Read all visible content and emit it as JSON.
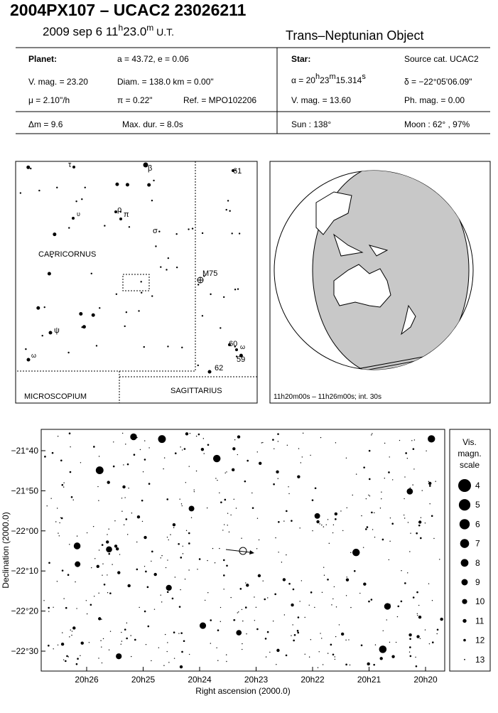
{
  "header": {
    "title": "2004PX107  –  UCAC2 23026211",
    "date": [
      "2009 sep  6  11",
      "h",
      "23.0",
      "m",
      " U.T."
    ],
    "object_class": "Trans–Neptunian Object"
  },
  "planet": {
    "heading": "Planet:",
    "orbit": "a = 43.72, e = 0.06",
    "vmag": "V. mag. = 23.20",
    "diam": "Diam. = 138.0 km = 0.00\"",
    "motion": "μ = 2.10\"/h",
    "parallax": "π = 0.22\"",
    "ref": "Ref. = MPO102206"
  },
  "star": {
    "heading": "Star:",
    "source": "Source cat.  UCAC2",
    "ra": [
      "α = 20",
      "h",
      "23",
      "m",
      "15.314",
      "s"
    ],
    "dec": "δ = −22°05'06.09\"",
    "vmag": "V. mag. = 13.60",
    "phmag": "Ph. mag. =  0.00"
  },
  "event": {
    "dmag": "Δm = 9.6",
    "maxdur": "Max. dur. = 8.0s",
    "sun": "Sun : 138°",
    "moon": "Moon :  62° , 97%"
  },
  "constellation_map": {
    "labels": [
      "τ",
      "β",
      "61",
      "υ",
      "ρ",
      "π",
      "σ",
      "CAPRICORNUS",
      "M75",
      "ψ",
      "ω",
      "60",
      "ω",
      "59",
      "62",
      "MICROSCOPIUM",
      "SAGITTARIUS"
    ]
  },
  "globe": {
    "caption": "11h20m00s – 11h26m00s; int. 30s"
  },
  "star_chart": {
    "x_label": "Right ascension (2000.0)",
    "y_label": "Declination (2000.0)",
    "x_ticks": [
      "20h26",
      "20h25",
      "20h24",
      "20h23",
      "20h22",
      "20h21",
      "20h20"
    ],
    "y_ticks": [
      "−21°40",
      "−21°50",
      "−22°00",
      "−22°10",
      "−22°20",
      "−22°30"
    ],
    "legend_title": [
      "Vis.",
      "magn.",
      "scale"
    ],
    "legend_magnitudes": [
      4,
      5,
      6,
      7,
      8,
      9,
      10,
      11,
      12,
      13
    ]
  }
}
